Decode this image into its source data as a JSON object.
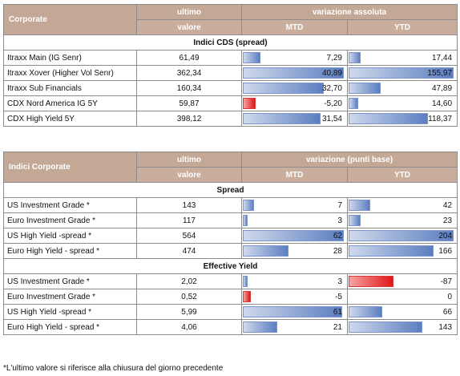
{
  "table1": {
    "title": "Corporate",
    "col_ultimo_1": "ultimo",
    "col_ultimo_2": "valore",
    "col_var": "variazione assoluta",
    "col_mtd": "MTD",
    "col_ytd": "YTD",
    "section": "Indici CDS (spread)",
    "rows": [
      {
        "name": "Itraxx Main (IG Senr)",
        "value": "61,49",
        "mtd": "7,29",
        "mtd_num": 7.29,
        "ytd": "17,44",
        "ytd_num": 17.44
      },
      {
        "name": "Itraxx Xover (Higher Vol Senr)",
        "value": "362,34",
        "mtd": "40,89",
        "mtd_num": 40.89,
        "ytd": "155,97",
        "ytd_num": 155.97
      },
      {
        "name": "Itraxx Sub Financials",
        "value": "160,34",
        "mtd": "32,70",
        "mtd_num": 32.7,
        "ytd": "47,89",
        "ytd_num": 47.89
      },
      {
        "name": "CDX Nord America IG 5Y",
        "value": "59,87",
        "mtd": "-5,20",
        "mtd_num": -5.2,
        "ytd": "14,60",
        "ytd_num": 14.6
      },
      {
        "name": "CDX High Yield 5Y",
        "value": "398,12",
        "mtd": "31,54",
        "mtd_num": 31.54,
        "ytd": "118,37",
        "ytd_num": 118.37
      }
    ]
  },
  "table2": {
    "title": "Indici Corporate",
    "col_ultimo_1": "ultimo",
    "col_ultimo_2": "valore",
    "col_var": "variazione (punti base)",
    "col_mtd": "MTD",
    "col_ytd": "YTD",
    "section_spread": "Spread",
    "spread_rows": [
      {
        "name": "US Investment Grade *",
        "value": "143",
        "mtd": "7",
        "mtd_num": 7,
        "ytd": "42",
        "ytd_num": 42
      },
      {
        "name": "Euro Investment Grade *",
        "value": "117",
        "mtd": "3",
        "mtd_num": 3,
        "ytd": "23",
        "ytd_num": 23
      },
      {
        "name": "US High Yield  -spread *",
        "value": "564",
        "mtd": "62",
        "mtd_num": 62,
        "ytd": "204",
        "ytd_num": 204
      },
      {
        "name": "Euro High Yield - spread *",
        "value": "474",
        "mtd": "28",
        "mtd_num": 28,
        "ytd": "166",
        "ytd_num": 166
      }
    ],
    "section_yield": "Effective Yield",
    "yield_rows": [
      {
        "name": "US Investment Grade *",
        "value": "2,02",
        "mtd": "3",
        "mtd_num": 3,
        "ytd": "-87",
        "ytd_num": -87
      },
      {
        "name": "Euro Investment Grade *",
        "value": "0,52",
        "mtd": "-5",
        "mtd_num": -5,
        "ytd": "0",
        "ytd_num": 0
      },
      {
        "name": "US High Yield  -spread *",
        "value": "5,99",
        "mtd": "61",
        "mtd_num": 61,
        "ytd": "66",
        "ytd_num": 66
      },
      {
        "name": "Euro High Yield - spread *",
        "value": "4,06",
        "mtd": "21",
        "mtd_num": 21,
        "ytd": "143",
        "ytd_num": 143
      }
    ]
  },
  "footnote": "*L'ultimo valore si riferisce alla chiusura del giorno precedente",
  "colors": {
    "positive_bar": "#5b7ec0",
    "negative_bar": "#e01616",
    "header_bg": "#c4a896"
  }
}
